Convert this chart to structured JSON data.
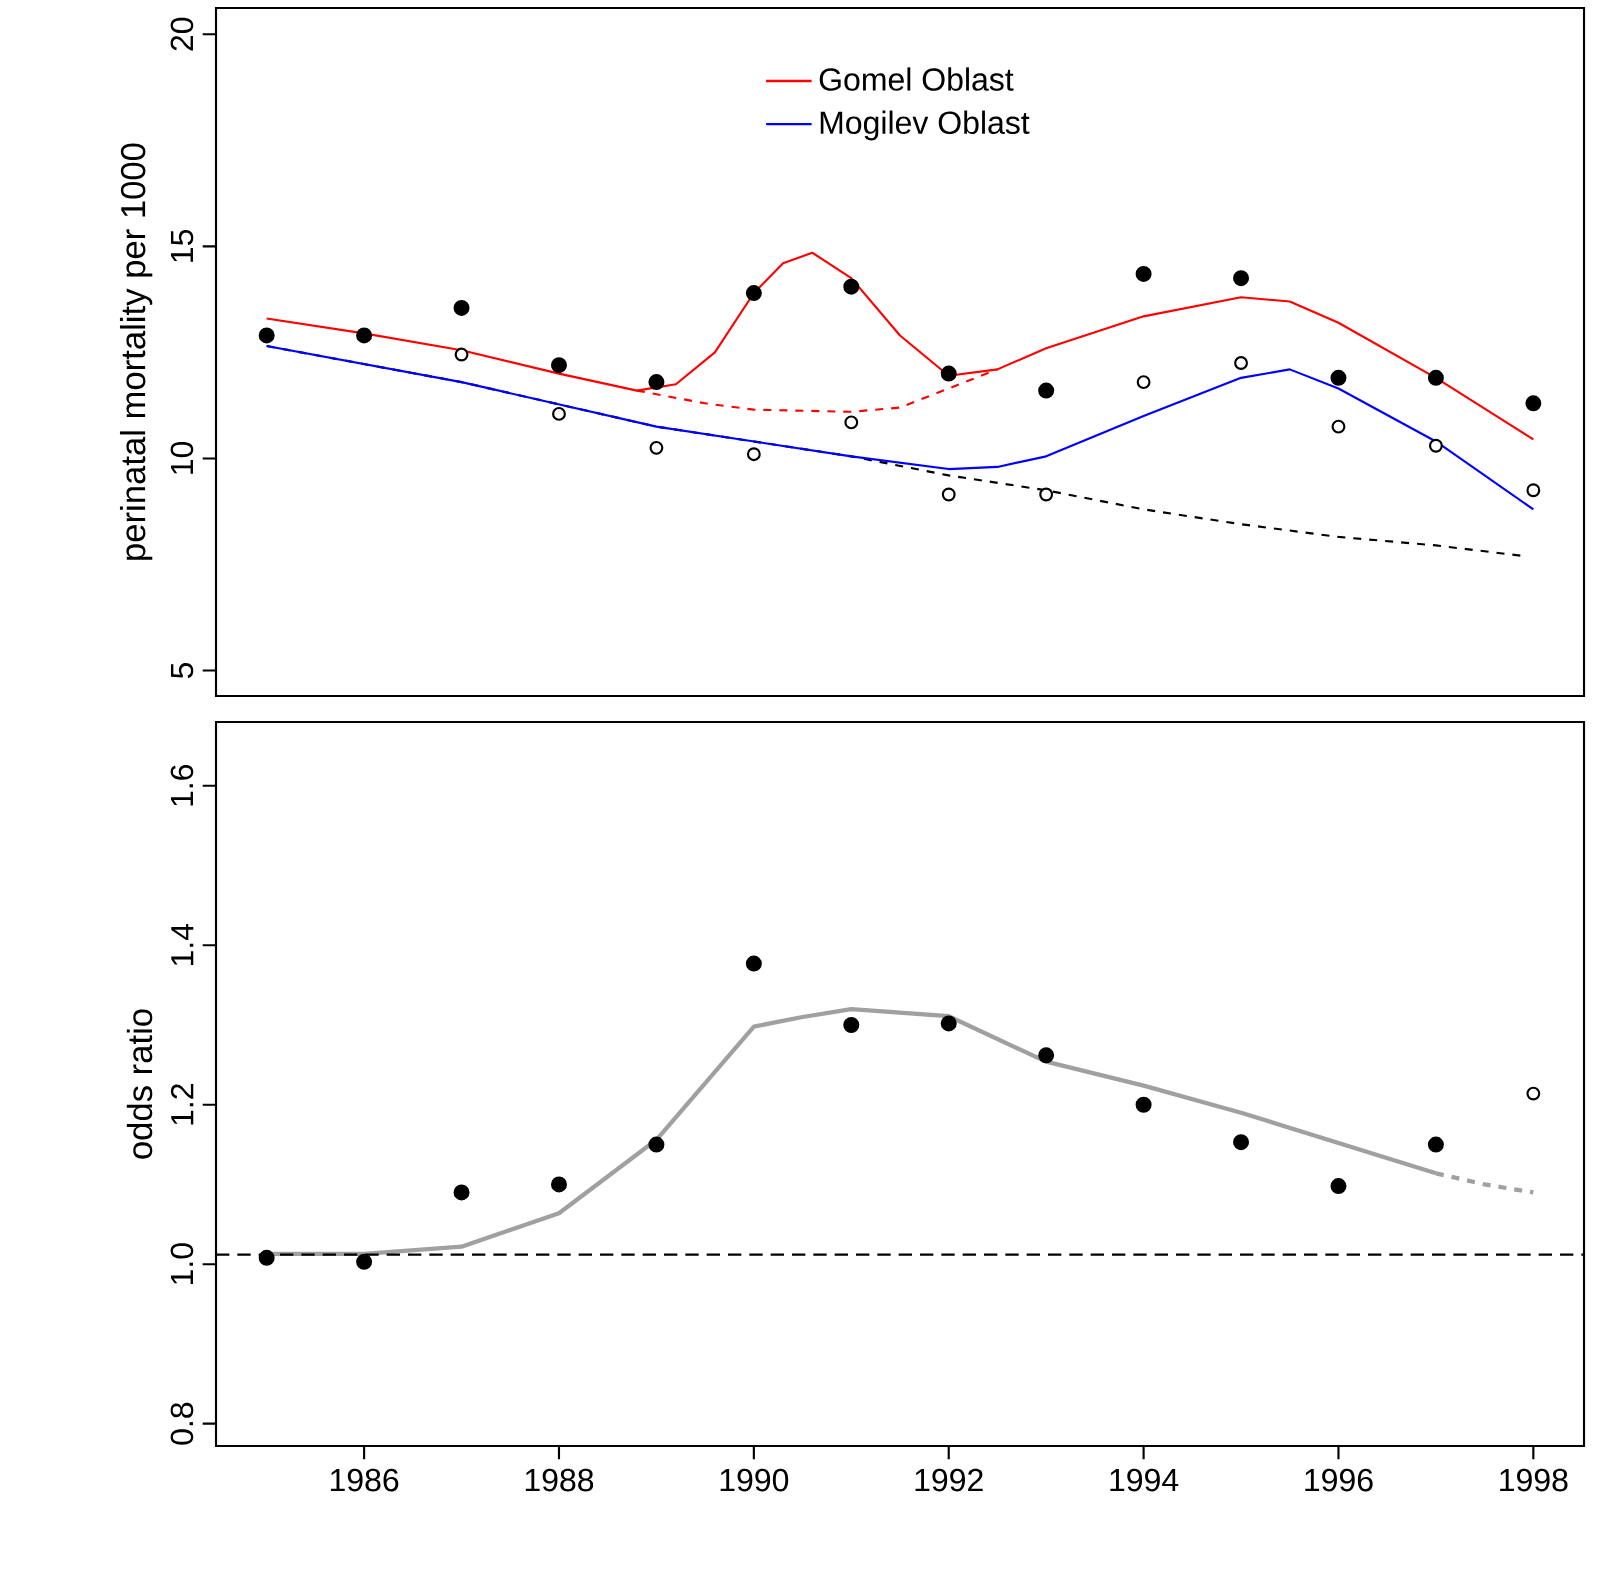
{
  "chart_data": [
    {
      "type": "scatter",
      "ylabel": "perinatal mortality per 1000",
      "xlim": [
        1984.48,
        1998.52
      ],
      "xticks": [
        1986,
        1988,
        1990,
        1992,
        1994,
        1996,
        1998
      ],
      "ylim": [
        4.4,
        20.62
      ],
      "yticks": [
        5,
        10,
        15,
        20
      ],
      "tick_labels": "y",
      "legend": "top",
      "x": [
        1985,
        1986,
        1987,
        1988,
        1989,
        1990,
        1991,
        1992,
        1993,
        1994,
        1995,
        1996,
        1997,
        1998
      ],
      "series": [
        {
          "type": "line",
          "color": "#000000",
          "line_style": "dashed",
          "x": [
            1985,
            1987,
            1989,
            1991,
            1992,
            1993,
            1994,
            1995,
            1996,
            1997,
            1997.9
          ],
          "values": [
            12.65,
            11.8,
            10.75,
            10.05,
            9.6,
            9.25,
            8.8,
            8.45,
            8.15,
            7.95,
            7.7
          ]
        },
        {
          "type": "line",
          "color": "#ff0000",
          "line_style": "dashed",
          "x": [
            1988.8,
            1989.5,
            1990,
            1991,
            1991.5,
            1992,
            1992.5
          ],
          "values": [
            11.6,
            11.3,
            11.15,
            11.1,
            11.2,
            11.65,
            12.1
          ]
        },
        {
          "type": "line",
          "name": "Gomel Oblast",
          "color": "#ff0000",
          "line_style": "solid",
          "x": [
            1985,
            1986,
            1987,
            1988,
            1988.8,
            1989.2,
            1989.6,
            1990,
            1990.3,
            1990.6,
            1991,
            1991.5,
            1992,
            1992.5,
            1993,
            1994,
            1995,
            1995.5,
            1996,
            1997,
            1998
          ],
          "values": [
            13.3,
            12.95,
            12.55,
            12.0,
            11.6,
            11.75,
            12.5,
            13.9,
            14.6,
            14.85,
            14.25,
            12.9,
            11.95,
            12.1,
            12.6,
            13.35,
            13.8,
            13.7,
            13.2,
            11.9,
            10.45
          ]
        },
        {
          "type": "line",
          "name": "Mogilev Oblast",
          "color": "#0000ff",
          "line_style": "solid",
          "x": [
            1985,
            1987,
            1989,
            1991,
            1992,
            1992.5,
            1993,
            1994,
            1995,
            1995.5,
            1996,
            1997,
            1998
          ],
          "values": [
            12.65,
            11.8,
            10.75,
            10.05,
            9.75,
            9.8,
            10.05,
            11.0,
            11.9,
            12.1,
            11.65,
            10.4,
            8.8
          ]
        },
        {
          "color": "#000000",
          "marker": "open circle",
          "values": [
            null,
            null,
            12.45,
            11.05,
            10.25,
            10.1,
            10.85,
            9.15,
            9.15,
            11.8,
            12.25,
            10.75,
            10.3,
            9.25
          ]
        },
        {
          "color": "#000000",
          "marker": "circle",
          "values": [
            12.9,
            12.9,
            13.55,
            12.2,
            11.8,
            13.9,
            14.05,
            12.0,
            11.6,
            14.35,
            14.25,
            11.9,
            11.9,
            11.3
          ]
        }
      ]
    },
    {
      "type": "scatter",
      "ylabel": "odds ratio",
      "xlim": [
        1984.48,
        1998.52
      ],
      "xticks": [
        1986,
        1988,
        1990,
        1992,
        1994,
        1996,
        1998
      ],
      "ylim": [
        0.772,
        1.68
      ],
      "yticks": [
        0.8,
        {
          "value": 1.0,
          "label": "1.0"
        },
        1.2,
        1.4,
        1.6
      ],
      "x": [
        1985,
        1986,
        1987,
        1988,
        1989,
        1990,
        1991,
        1992,
        1993,
        1994,
        1995,
        1996,
        1997
      ],
      "ref_lines": [
        {
          "axis": "y",
          "value": 1.012,
          "color": "#000000",
          "line_style": "dashed"
        }
      ],
      "series": [
        {
          "type": "line",
          "color": "#a0a0a0",
          "line_style": "solid",
          "x": [
            1985,
            1986,
            1987,
            1988,
            1989,
            1990,
            1990.5,
            1991,
            1992,
            1993,
            1994,
            1995,
            1996,
            1997
          ],
          "values": [
            1.013,
            1.013,
            1.022,
            1.064,
            1.156,
            1.298,
            1.31,
            1.32,
            1.311,
            1.254,
            1.224,
            1.19,
            1.152,
            1.114
          ]
        },
        {
          "type": "line",
          "color": "#a0a0a0",
          "line_style": "dashed",
          "x": [
            1997,
            1997.5,
            1998
          ],
          "values": [
            1.114,
            1.1,
            1.09
          ]
        },
        {
          "color": "#000000",
          "marker": "circle",
          "values": [
            1.008,
            1.003,
            1.09,
            1.1,
            1.15,
            1.377,
            1.3,
            1.302,
            1.262,
            1.2,
            1.153,
            1.098,
            1.15
          ]
        },
        {
          "color": "#000000",
          "marker": "open circle",
          "x": [
            1998
          ],
          "values": [
            1.214
          ]
        }
      ]
    }
  ]
}
